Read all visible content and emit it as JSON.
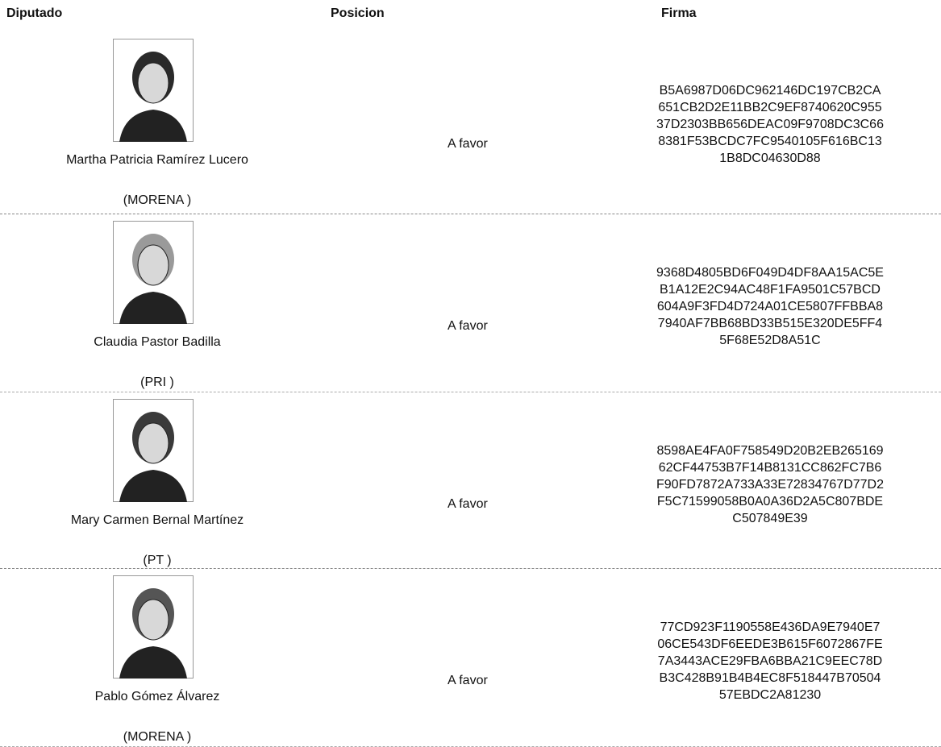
{
  "header": [
    "Diputado",
    "Posicion",
    "Firma"
  ],
  "rows": [
    {
      "name": "Martha Patricia Ramírez Lucero",
      "party": "(MORENA )",
      "position": "A favor",
      "signature": [
        "B5A6987D06DC962146DC197CB2CA",
        "651CB2D2E11BB2C9EF8740620C955",
        "37D2303BB656DEAC09F9708DC3C66",
        "8381F53BCDC7FC9540105F616BC13",
        "1B8DC04630D88"
      ]
    },
    {
      "name": "Claudia Pastor Badilla",
      "party": "(PRI )",
      "position": "A favor",
      "signature": [
        "9368D4805BD6F049D4DF8AA15AC5E",
        "B1A12E2C94AC48F1FA9501C57BCD",
        "604A9F3FD4D724A01CE5807FFBBA8",
        "7940AF7BB68BD33B515E320DE5FF4",
        "5F68E52D8A51C"
      ]
    },
    {
      "name": "Mary Carmen Bernal Martínez",
      "party": "(PT )",
      "position": "A favor",
      "signature": [
        "8598AE4FA0F758549D20B2EB265169",
        "62CF44753B7F14B8131CC862FC7B6",
        "F90FD7872A733A33E72834767D77D2",
        "F5C71599058B0A0A36D2A5C807BDE",
        "C507849E39"
      ]
    },
    {
      "name": "Pablo Gómez Álvarez",
      "party": "(MORENA )",
      "position": "A favor",
      "signature": [
        "77CD923F1190558E436DA9E7940E7",
        "06CE543DF6EEDE3B615F6072867FE",
        "7A3443ACE29FBA6BBA21C9EEC78D",
        "B3C428B91B4B4EC8F518447B70504",
        "57EBDC2A81230"
      ]
    }
  ]
}
